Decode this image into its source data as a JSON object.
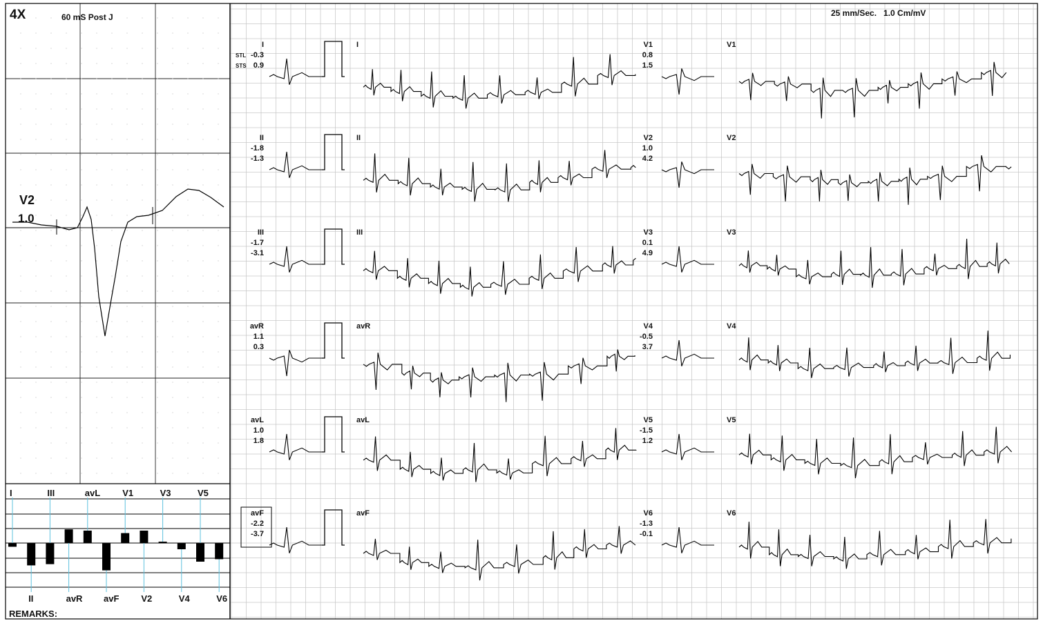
{
  "header": {
    "magnification": "4X",
    "measure_point": "60 mS Post J",
    "speed_gain": "25 mm/Sec.   1.0 Cm/mV"
  },
  "zoom_panel": {
    "lead": "V2",
    "value": "1.0"
  },
  "row_prefix": {
    "stl": "STL",
    "sts": "STS"
  },
  "leads": [
    {
      "name": "I",
      "stl": "-0.3",
      "sts": "0.9"
    },
    {
      "name": "II",
      "stl": "-1.8",
      "sts": "-1.3"
    },
    {
      "name": "III",
      "stl": "-1.7",
      "sts": "-3.1"
    },
    {
      "name": "avR",
      "stl": "1.1",
      "sts": "0.3"
    },
    {
      "name": "avL",
      "stl": "1.0",
      "sts": "1.8"
    },
    {
      "name": "avF",
      "stl": "-2.2",
      "sts": "-3.7"
    },
    {
      "name": "V1",
      "stl": "0.8",
      "sts": "1.5"
    },
    {
      "name": "V2",
      "stl": "1.0",
      "sts": "4.2"
    },
    {
      "name": "V3",
      "stl": "0.1",
      "sts": "4.9"
    },
    {
      "name": "V4",
      "stl": "-0.5",
      "sts": "3.7"
    },
    {
      "name": "V5",
      "stl": "-1.5",
      "sts": "1.2"
    },
    {
      "name": "V6",
      "stl": "-1.3",
      "sts": "-0.1"
    }
  ],
  "histogram": {
    "top_labels": [
      "I",
      "III",
      "avL",
      "V1",
      "V3",
      "V5"
    ],
    "bottom_labels": [
      "II",
      "avR",
      "avF",
      "V2",
      "V4",
      "V6"
    ],
    "order": [
      "I",
      "II",
      "III",
      "avR",
      "avL",
      "avF",
      "V1",
      "V2",
      "V3",
      "V4",
      "V5",
      "V6"
    ],
    "values": [
      -0.3,
      -1.8,
      -1.7,
      1.1,
      1.0,
      -2.2,
      0.8,
      1.0,
      0.1,
      -0.5,
      -1.5,
      -1.3
    ]
  },
  "remarks_label": "REMARKS:",
  "colors": {
    "grid": "#c9c9c9",
    "trace": "#000000",
    "marker": "#5bc0de"
  }
}
